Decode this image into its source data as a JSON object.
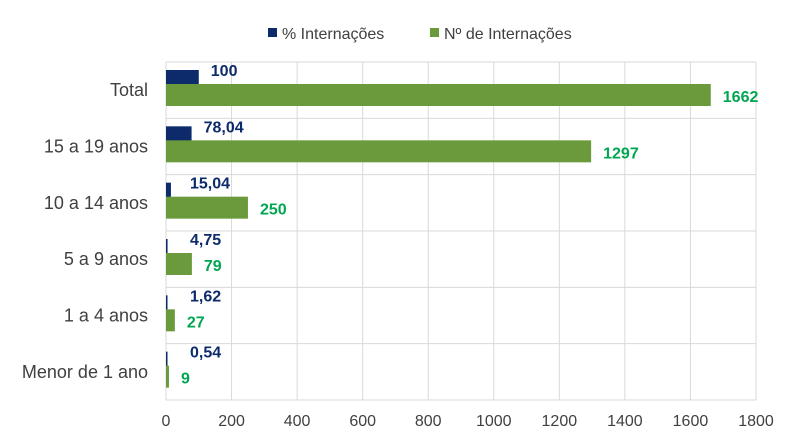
{
  "chart_data": {
    "type": "bar",
    "orientation": "horizontal",
    "categories": [
      "Total",
      "15 a 19 anos",
      "10 a 14 anos",
      "5 a 9 anos",
      "1 a 4 anos",
      "Menor de 1 ano"
    ],
    "series": [
      {
        "name": "% Internações",
        "values": [
          100,
          78.04,
          15.04,
          4.75,
          1.62,
          0.54
        ],
        "labels": [
          "100",
          "78,04",
          "15,04",
          "4,75",
          "1,62",
          "0,54"
        ],
        "color": "#0D2A6B",
        "label_color": "#0D2A6B"
      },
      {
        "name": "Nº de Internações",
        "values": [
          1662,
          1297,
          250,
          79,
          27,
          9
        ],
        "labels": [
          "1662",
          "1297",
          "250",
          "79",
          "27",
          "9"
        ],
        "color": "#6A9A3B",
        "label_color": "#00A651"
      }
    ],
    "xlim": [
      0,
      1800
    ],
    "xticks": [
      "0",
      "200",
      "400",
      "600",
      "800",
      "1000",
      "1200",
      "1400",
      "1600",
      "1800"
    ],
    "xtick_values": [
      0,
      200,
      400,
      600,
      800,
      1000,
      1200,
      1400,
      1600,
      1800
    ],
    "grid": true,
    "legend_position": "top-center",
    "gridline_color": "#D9D9D9",
    "axis_text_color": "#404040"
  }
}
